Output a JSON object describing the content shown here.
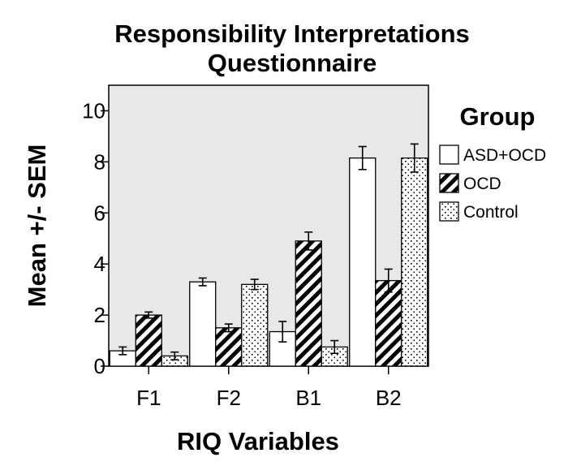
{
  "chart_data": {
    "type": "bar",
    "title": [
      "Responsibility Interpretations",
      "Questionnaire"
    ],
    "xlabel": "RIQ Variables",
    "ylabel": "Mean +/- SEM",
    "categories": [
      "F1",
      "F2",
      "B1",
      "B2"
    ],
    "ylim": [
      0,
      11
    ],
    "yticks": [
      0,
      2,
      4,
      6,
      8,
      10
    ],
    "legend_title": "Group",
    "legend_position": "right",
    "grid": false,
    "plot_background": "#e8e8e8",
    "series": [
      {
        "name": "ASD+OCD",
        "pattern": "solid-white",
        "values": [
          0.6,
          3.3,
          1.35,
          8.15
        ],
        "errors": [
          0.15,
          0.15,
          0.4,
          0.45
        ]
      },
      {
        "name": "OCD",
        "pattern": "diagonal-hatch",
        "values": [
          2.0,
          1.5,
          4.9,
          3.35
        ],
        "errors": [
          0.12,
          0.15,
          0.35,
          0.45
        ]
      },
      {
        "name": "Control",
        "pattern": "dotted",
        "values": [
          0.4,
          3.2,
          0.75,
          8.15
        ],
        "errors": [
          0.15,
          0.2,
          0.25,
          0.55
        ]
      }
    ]
  }
}
